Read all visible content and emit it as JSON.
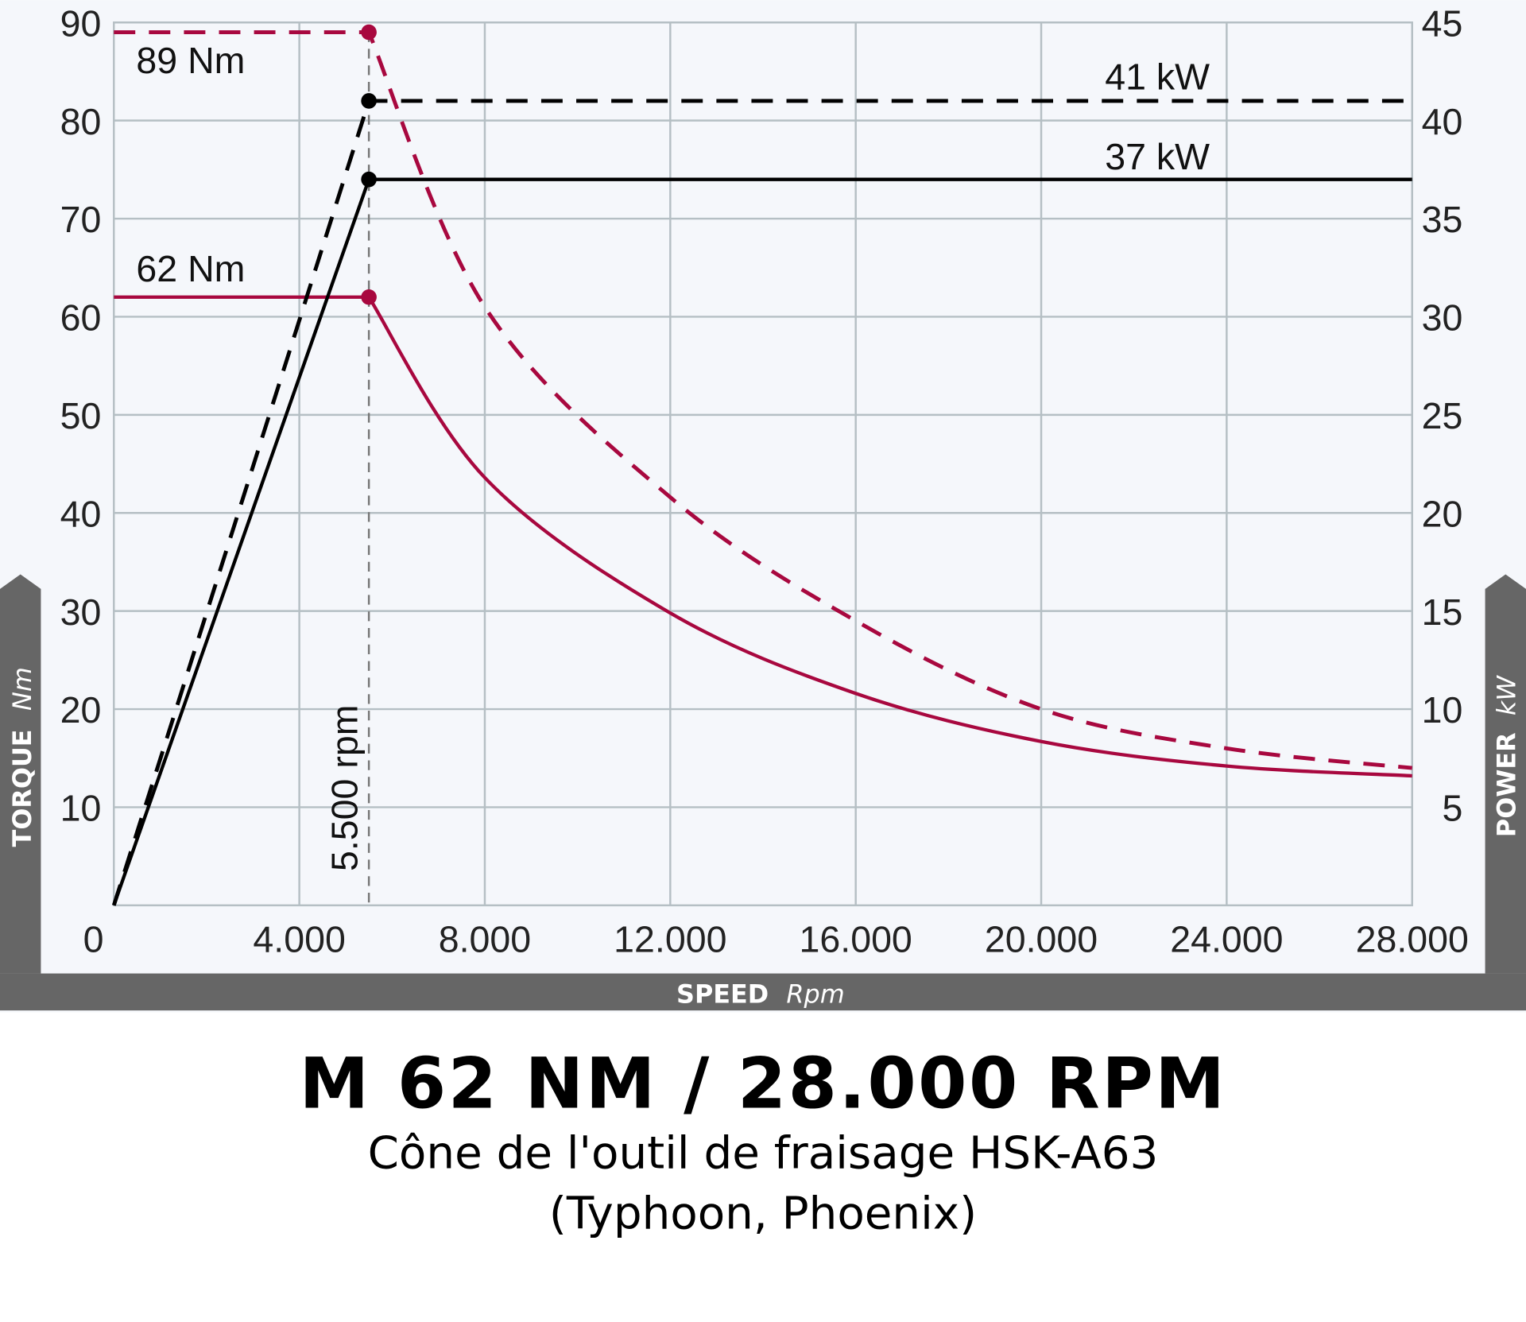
{
  "chart_data": {
    "type": "line",
    "title": "M 62 NM / 28.000 RPM",
    "subtitle_lines": [
      "Cône de l'outil de fraisage HSK-A63",
      "(Typhoon, Phoenix)"
    ],
    "xlabel": "SPEED",
    "xunit": "Rpm",
    "ylabel_left": "TORQUE",
    "yunit_left": "Nm",
    "ylabel_right": "POWER",
    "yunit_right": "kW",
    "xlim": [
      0,
      28000
    ],
    "ylim_left": [
      0,
      90
    ],
    "ylim_right": [
      0,
      45
    ],
    "grid": true,
    "x_ticks": [
      "0",
      "4.000",
      "8.000",
      "12.000",
      "16.000",
      "20.000",
      "24.000",
      "28.000"
    ],
    "y_ticks_left": [
      "10",
      "20",
      "30",
      "40",
      "50",
      "60",
      "70",
      "80",
      "90"
    ],
    "y_ticks_right": [
      "5",
      "10",
      "15",
      "20",
      "25",
      "30",
      "35",
      "40",
      "45"
    ],
    "colors": {
      "torque": "#a8083f",
      "power": "#000000",
      "grid": "#b5bfc4",
      "plot_bg": "#f5f7fb",
      "bars": "#666666"
    },
    "series": [
      {
        "axis": "left",
        "style": "dashed",
        "color": "#a8083f",
        "x": [
          0,
          5500,
          8000,
          12000,
          16000,
          20000,
          24000,
          28000
        ],
        "y": [
          89,
          89,
          61,
          41.6,
          29,
          20,
          16,
          14
        ]
      },
      {
        "axis": "left",
        "style": "solid",
        "color": "#a8083f",
        "x": [
          0,
          5500,
          8000,
          12000,
          16000,
          20000,
          24000,
          28000
        ],
        "y": [
          62,
          62,
          43.6,
          29.8,
          21.6,
          16.7,
          14.2,
          13.2
        ]
      },
      {
        "axis": "right",
        "style": "dashed",
        "color": "#000000",
        "x": [
          0,
          5500,
          28000
        ],
        "y": [
          0,
          41,
          41
        ]
      },
      {
        "axis": "right",
        "style": "solid",
        "color": "#000000",
        "x": [
          0,
          5500,
          28000
        ],
        "y": [
          0,
          37,
          37
        ]
      }
    ],
    "annotations": {
      "peak_torque": "89 Nm",
      "nominal_torque": "62 Nm",
      "peak_power": "41 kW",
      "nominal_power": "37 kW",
      "corner_speed": "5.500 rpm",
      "corner_speed_value": 5500
    }
  }
}
